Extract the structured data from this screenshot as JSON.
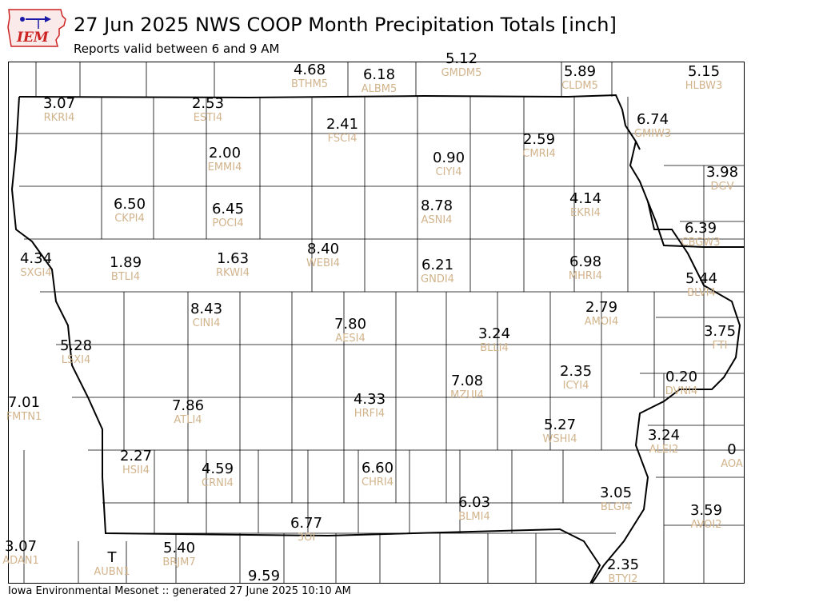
{
  "header": {
    "title": "27 Jun 2025 NWS COOP Month Precipitation Totals [inch]",
    "subtitle": "Reports valid between 6 and 9 AM",
    "logo_text": "IEM"
  },
  "footer": {
    "text": "Iowa Environmental Mesonet :: generated 27 June 2025 10:10 AM"
  },
  "colors": {
    "value": "#000000",
    "station": "#d2b48c",
    "logo_red": "#cc2222",
    "logo_blue": "#1a1aa6"
  },
  "stations": [
    {
      "id": "BTHM5",
      "value": "4.68"
    },
    {
      "id": "ALBM5",
      "value": "6.18"
    },
    {
      "id": "GMDM5",
      "value": "5.12"
    },
    {
      "id": "CLDM5",
      "value": "5.89"
    },
    {
      "id": "HLBW3",
      "value": "5.15"
    },
    {
      "id": "RKRI4",
      "value": "3.07"
    },
    {
      "id": "ESTI4",
      "value": "2.53"
    },
    {
      "id": "FSCI4",
      "value": "2.41"
    },
    {
      "id": "CMRI4",
      "value": "2.59"
    },
    {
      "id": "GMIW3",
      "value": "6.74"
    },
    {
      "id": "EMMI4",
      "value": "2.00"
    },
    {
      "id": "CIYI4",
      "value": "0.90"
    },
    {
      "id": "DGV",
      "value": "3.98"
    },
    {
      "id": "CKPI4",
      "value": "6.50"
    },
    {
      "id": "POCI4",
      "value": "6.45"
    },
    {
      "id": "ASNI4",
      "value": "8.78"
    },
    {
      "id": "EKRI4",
      "value": "4.14"
    },
    {
      "id": "CBGW3",
      "value": "6.39"
    },
    {
      "id": "SXGI4",
      "value": "4.34"
    },
    {
      "id": "BTLI4",
      "value": "1.89"
    },
    {
      "id": "RKWI4",
      "value": "1.63"
    },
    {
      "id": "WEBI4",
      "value": "8.40"
    },
    {
      "id": "GNDI4",
      "value": "6.21"
    },
    {
      "id": "MHRI4",
      "value": "6.98"
    },
    {
      "id": "BLVI4",
      "value": "5.44"
    },
    {
      "id": "CINI4",
      "value": "8.43"
    },
    {
      "id": "AMOI4",
      "value": "2.79"
    },
    {
      "id": "AESI4",
      "value": "7.80"
    },
    {
      "id": "BLLI4",
      "value": "3.24"
    },
    {
      "id": "FTI",
      "value": "3.75"
    },
    {
      "id": "LSXI4",
      "value": "5.28"
    },
    {
      "id": "ICYI4",
      "value": "2.35"
    },
    {
      "id": "MZUI4",
      "value": "7.08"
    },
    {
      "id": "DVNI4",
      "value": "0.20"
    },
    {
      "id": "FMTN1",
      "value": "7.01"
    },
    {
      "id": "ATLI4",
      "value": "7.86"
    },
    {
      "id": "HRFI4",
      "value": "4.33"
    },
    {
      "id": "WSHI4",
      "value": "5.27"
    },
    {
      "id": "ALEI2",
      "value": "3.24"
    },
    {
      "id": "AOA",
      "value": "0"
    },
    {
      "id": "HSII4",
      "value": "2.27"
    },
    {
      "id": "CRNI4",
      "value": "4.59"
    },
    {
      "id": "CHRI4",
      "value": "6.60"
    },
    {
      "id": "BLGI4",
      "value": "3.05"
    },
    {
      "id": "BLMI4",
      "value": "6.03"
    },
    {
      "id": "AVOI2",
      "value": "3.59"
    },
    {
      "id": "3OI",
      "value": "6.77"
    },
    {
      "id": "ADAN1",
      "value": "3.07"
    },
    {
      "id": "AUBN1",
      "value": "T"
    },
    {
      "id": "BRJM7",
      "value": "5.40"
    },
    {
      "id": "BTYI2",
      "value": "2.35"
    },
    {
      "id": "",
      "value": "9.59"
    }
  ]
}
